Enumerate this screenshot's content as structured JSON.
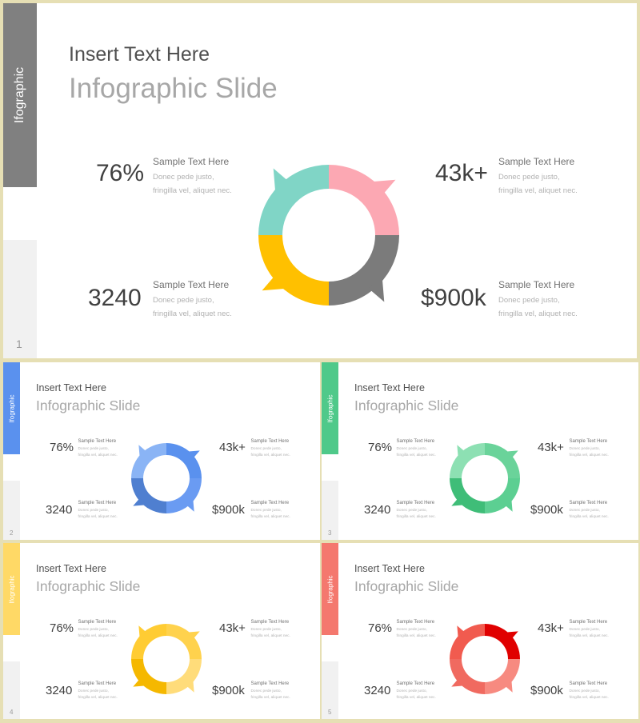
{
  "slides": [
    {
      "number": "1",
      "tab_label": "Ifographic",
      "accent": "#808080",
      "title_line1": "Insert Text Here",
      "title_line2": "Infographic Slide",
      "colors": {
        "tl": "#80d5c6",
        "tr": "#fca8b3",
        "br": "#7b7b7b",
        "bl": "#ffc000"
      },
      "stats": [
        {
          "value": "76%",
          "heading": "Sample  Text Here",
          "desc": "Donec pede justo, fringilla  vel, aliquet nec."
        },
        {
          "value": "43k+",
          "heading": "Sample  Text Here",
          "desc": "Donec pede justo, fringilla  vel, aliquet nec."
        },
        {
          "value": "3240",
          "heading": "Sample  Text Here",
          "desc": "Donec pede justo, fringilla  vel, aliquet nec."
        },
        {
          "value": "$900k",
          "heading": "Sample  Text Here",
          "desc": "Donec pede justo, fringilla  vel, aliquet nec."
        }
      ]
    },
    {
      "number": "2",
      "tab_label": "Ifographic",
      "accent": "#5a91ee",
      "title_line1": "Insert Text Here",
      "title_line2": "Infographic Slide",
      "colors": {
        "tl": "#8ab4f5",
        "tr": "#5a91ee",
        "br": "#6a9bf2",
        "bl": "#4f7fd0"
      },
      "stats": [
        {
          "value": "76%",
          "heading": "Sample  Text Here",
          "desc": "Donec pede justo, fringilla  vel, aliquet nec."
        },
        {
          "value": "43k+",
          "heading": "Sample  Text Here",
          "desc": "Donec pede justo, fringilla  vel, aliquet nec."
        },
        {
          "value": "3240",
          "heading": "Sample  Text Here",
          "desc": "Donec pede justo, fringilla  vel, aliquet nec."
        },
        {
          "value": "$900k",
          "heading": "Sample  Text Here",
          "desc": "Donec pede justo, fringilla  vel, aliquet nec."
        }
      ]
    },
    {
      "number": "3",
      "tab_label": "Ifographic",
      "accent": "#4fc98a",
      "title_line1": "Insert Text Here",
      "title_line2": "Infographic Slide",
      "colors": {
        "tl": "#8de0b3",
        "tr": "#6ad39a",
        "br": "#5ccf92",
        "bl": "#3fbd78"
      },
      "stats": [
        {
          "value": "76%",
          "heading": "Sample  Text Here",
          "desc": "Donec pede justo, fringilla  vel, aliquet nec."
        },
        {
          "value": "43k+",
          "heading": "Sample  Text Here",
          "desc": "Donec pede justo, fringilla  vel, aliquet nec."
        },
        {
          "value": "3240",
          "heading": "Sample  Text Here",
          "desc": "Donec pede justo, fringilla  vel, aliquet nec."
        },
        {
          "value": "$900k",
          "heading": "Sample  Text Here",
          "desc": "Donec pede justo, fringilla  vel, aliquet nec."
        }
      ]
    },
    {
      "number": "4",
      "tab_label": "Ifographic",
      "accent": "#ffd966",
      "title_line1": "Insert Text Here",
      "title_line2": "Infographic Slide",
      "colors": {
        "tl": "#ffcc33",
        "tr": "#ffd24d",
        "br": "#ffdc7a",
        "bl": "#f5b800"
      },
      "stats": [
        {
          "value": "76%",
          "heading": "Sample  Text Here",
          "desc": "Donec pede justo, fringilla  vel, aliquet nec."
        },
        {
          "value": "43k+",
          "heading": "Sample  Text Here",
          "desc": "Donec pede justo, fringilla  vel, aliquet nec."
        },
        {
          "value": "3240",
          "heading": "Sample  Text Here",
          "desc": "Donec pede justo, fringilla  vel, aliquet nec."
        },
        {
          "value": "$900k",
          "heading": "Sample  Text Here",
          "desc": "Donec pede justo, fringilla  vel, aliquet nec."
        }
      ]
    },
    {
      "number": "5",
      "tab_label": "Ifographic",
      "accent": "#f4786e",
      "title_line1": "Insert Text Here",
      "title_line2": "Infographic Slide",
      "colors": {
        "tl": "#f15b4f",
        "tr": "#e00000",
        "br": "#f78a80",
        "bl": "#f06a60"
      },
      "stats": [
        {
          "value": "76%",
          "heading": "Sample  Text Here",
          "desc": "Donec pede justo, fringilla  vel, aliquet nec."
        },
        {
          "value": "43k+",
          "heading": "Sample  Text Here",
          "desc": "Donec pede justo, fringilla  vel, aliquet nec."
        },
        {
          "value": "3240",
          "heading": "Sample  Text Here",
          "desc": "Donec pede justo, fringilla  vel, aliquet nec."
        },
        {
          "value": "$900k",
          "heading": "Sample  Text Here",
          "desc": "Donec pede justo, fringilla  vel, aliquet nec."
        }
      ]
    }
  ]
}
